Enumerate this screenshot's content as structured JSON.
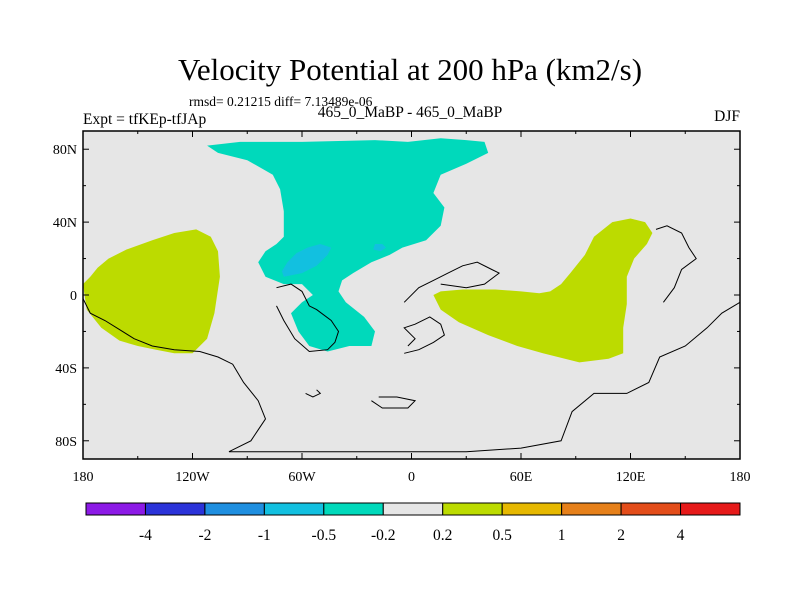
{
  "chart_data": {
    "type": "filled-contour-map",
    "title": "Velocity Potential at 200 hPa (km2/s)",
    "stats_line": "rmsd= 0.21215  diff= 7.13489e-06",
    "left_label": "Expt = tfKEp-tfJAp",
    "center_label": "465_0_MaBP - 465_0_MaBP",
    "right_label": "DJF",
    "xlim": [
      -180,
      180
    ],
    "ylim": [
      -90,
      90
    ],
    "x_ticks": [
      {
        "value": -180,
        "label": "180"
      },
      {
        "value": -120,
        "label": "120W"
      },
      {
        "value": -60,
        "label": "60W"
      },
      {
        "value": 0,
        "label": "0"
      },
      {
        "value": 60,
        "label": "60E"
      },
      {
        "value": 120,
        "label": "120E"
      },
      {
        "value": 180,
        "label": "180"
      }
    ],
    "y_ticks": [
      {
        "value": 80,
        "label": "80N"
      },
      {
        "value": 40,
        "label": "40N"
      },
      {
        "value": 0,
        "label": "0"
      },
      {
        "value": -40,
        "label": "40S"
      },
      {
        "value": -80,
        "label": "80S"
      }
    ],
    "colorbar": {
      "colors": [
        "#8c1ae6",
        "#2b33d9",
        "#1f8fe0",
        "#12c0e0",
        "#00d9bb",
        "#e6e6e6",
        "#bcdb00",
        "#e6b800",
        "#e6801a",
        "#e34d1a",
        "#e61a1a"
      ],
      "labels": [
        "-4",
        "-2",
        "-1",
        "-0.5",
        "-0.2",
        "0.2",
        "0.5",
        "1",
        "2",
        "4"
      ]
    },
    "regions": [
      {
        "name": "positive-north-pacific",
        "level": "0.2 to 0.5",
        "color": "#bcdb00",
        "lonlat": [
          [
            -180,
            6
          ],
          [
            -178,
            -8
          ],
          [
            -170,
            -18
          ],
          [
            -160,
            -25
          ],
          [
            -150,
            -28
          ],
          [
            -140,
            -30
          ],
          [
            -130,
            -32
          ],
          [
            -120,
            -32
          ],
          [
            -112,
            -24
          ],
          [
            -108,
            -10
          ],
          [
            -105,
            10
          ],
          [
            -106,
            24
          ],
          [
            -110,
            32
          ],
          [
            -118,
            36
          ],
          [
            -130,
            34
          ],
          [
            -142,
            30
          ],
          [
            -156,
            25
          ],
          [
            -166,
            20
          ],
          [
            -172,
            15
          ],
          [
            -176,
            10
          ]
        ]
      },
      {
        "name": "positive-indian-ocean",
        "level": "0.2 to 0.5",
        "color": "#bcdb00",
        "lonlat": [
          [
            12,
            0
          ],
          [
            16,
            -8
          ],
          [
            26,
            -15
          ],
          [
            42,
            -22
          ],
          [
            58,
            -28
          ],
          [
            72,
            -32
          ],
          [
            92,
            -37
          ],
          [
            108,
            -35
          ],
          [
            116,
            -32
          ],
          [
            116,
            -18
          ],
          [
            118,
            -5
          ],
          [
            118,
            10
          ],
          [
            122,
            20
          ],
          [
            129,
            28
          ],
          [
            132,
            34
          ],
          [
            128,
            40
          ],
          [
            120,
            42
          ],
          [
            110,
            40
          ],
          [
            100,
            32
          ],
          [
            95,
            22
          ],
          [
            87,
            12
          ],
          [
            82,
            6
          ],
          [
            76,
            2
          ],
          [
            70,
            1
          ],
          [
            60,
            2
          ],
          [
            46,
            3
          ],
          [
            38,
            3
          ],
          [
            28,
            3
          ],
          [
            16,
            2
          ]
        ]
      },
      {
        "name": "negative-atlantic",
        "level": "-0.5 to -0.2",
        "color": "#00d9bb",
        "lonlat": [
          [
            -112,
            82
          ],
          [
            -94,
            84
          ],
          [
            -60,
            84
          ],
          [
            -20,
            85
          ],
          [
            -2,
            84
          ],
          [
            16,
            86
          ],
          [
            30,
            85
          ],
          [
            40,
            84
          ],
          [
            42,
            78
          ],
          [
            30,
            72
          ],
          [
            16,
            66
          ],
          [
            12,
            56
          ],
          [
            18,
            48
          ],
          [
            16,
            38
          ],
          [
            8,
            30
          ],
          [
            -5,
            26
          ],
          [
            -12,
            22
          ],
          [
            -22,
            18
          ],
          [
            -32,
            12
          ],
          [
            -38,
            8
          ],
          [
            -40,
            2
          ],
          [
            -36,
            -4
          ],
          [
            -26,
            -12
          ],
          [
            -20,
            -20
          ],
          [
            -22,
            -28
          ],
          [
            -34,
            -28
          ],
          [
            -46,
            -31
          ],
          [
            -56,
            -28
          ],
          [
            -62,
            -20
          ],
          [
            -66,
            -10
          ],
          [
            -60,
            -4
          ],
          [
            -54,
            0
          ],
          [
            -60,
            6
          ],
          [
            -70,
            6
          ],
          [
            -80,
            10
          ],
          [
            -84,
            18
          ],
          [
            -80,
            24
          ],
          [
            -74,
            28
          ],
          [
            -70,
            32
          ],
          [
            -70,
            46
          ],
          [
            -72,
            58
          ],
          [
            -76,
            66
          ],
          [
            -90,
            74
          ],
          [
            -106,
            78
          ]
        ]
      },
      {
        "name": "negative-center",
        "level": "-1 to -0.5",
        "color": "#12c0e0",
        "lonlat": [
          [
            -70,
            10
          ],
          [
            -60,
            12
          ],
          [
            -52,
            16
          ],
          [
            -46,
            22
          ],
          [
            -44,
            26
          ],
          [
            -50,
            28
          ],
          [
            -57,
            26
          ],
          [
            -63,
            23
          ],
          [
            -68,
            18
          ],
          [
            -71,
            13
          ]
        ]
      },
      {
        "name": "negative-spot",
        "level": "-1 to -0.5",
        "color": "#12c0e0",
        "lonlat": [
          [
            -20,
            28
          ],
          [
            -16,
            28
          ],
          [
            -14,
            26
          ],
          [
            -17,
            24
          ],
          [
            -21,
            25
          ]
        ]
      }
    ],
    "land_outlines": [
      {
        "name": "coast-west",
        "lonlat": [
          [
            -180,
            -2
          ],
          [
            -176,
            -10
          ],
          [
            -168,
            -14
          ],
          [
            -160,
            -19
          ],
          [
            -152,
            -24
          ],
          [
            -142,
            -28
          ],
          [
            -130,
            -30
          ],
          [
            -116,
            -31
          ],
          [
            -106,
            -34
          ],
          [
            -98,
            -38
          ],
          [
            -92,
            -48
          ],
          [
            -84,
            -58
          ],
          [
            -80,
            -68
          ],
          [
            -84,
            -74
          ],
          [
            -88,
            -80
          ],
          [
            -96,
            -84
          ],
          [
            -100,
            -86
          ],
          [
            -80,
            -86
          ],
          [
            -20,
            -86
          ],
          [
            30,
            -86
          ],
          [
            60,
            -84
          ],
          [
            82,
            -80
          ],
          [
            88,
            -64
          ],
          [
            100,
            -54
          ],
          [
            118,
            -54
          ],
          [
            130,
            -48
          ],
          [
            136,
            -34
          ],
          [
            150,
            -28
          ],
          [
            162,
            -18
          ],
          [
            170,
            -10
          ],
          [
            180,
            -4
          ]
        ]
      },
      {
        "name": "south-america",
        "lonlat": [
          [
            -74,
            4
          ],
          [
            -66,
            6
          ],
          [
            -60,
            2
          ],
          [
            -56,
            -6
          ],
          [
            -52,
            -8
          ],
          [
            -44,
            -14
          ],
          [
            -40,
            -20
          ],
          [
            -42,
            -26
          ],
          [
            -46,
            -30
          ],
          [
            -56,
            -31
          ],
          [
            -64,
            -24
          ],
          [
            -70,
            -14
          ],
          [
            -74,
            -6
          ]
        ]
      },
      {
        "name": "africa",
        "lonlat": [
          [
            -4,
            -32
          ],
          [
            4,
            -30
          ],
          [
            12,
            -26
          ],
          [
            18,
            -22
          ],
          [
            16,
            -16
          ],
          [
            10,
            -12
          ],
          [
            2,
            -16
          ],
          [
            -4,
            -18
          ],
          [
            2,
            -24
          ],
          [
            -2,
            -28
          ]
        ]
      },
      {
        "name": "eurasia-coast",
        "lonlat": [
          [
            -4,
            -4
          ],
          [
            4,
            4
          ],
          [
            12,
            8
          ],
          [
            20,
            12
          ],
          [
            28,
            16
          ],
          [
            36,
            18
          ],
          [
            44,
            14
          ],
          [
            48,
            12
          ],
          [
            40,
            6
          ],
          [
            30,
            4
          ],
          [
            16,
            6
          ]
        ]
      },
      {
        "name": "south-island-1",
        "lonlat": [
          [
            -22,
            -58
          ],
          [
            -16,
            -62
          ],
          [
            -2,
            -62
          ],
          [
            2,
            -58
          ],
          [
            -8,
            -56
          ],
          [
            -18,
            -56
          ]
        ]
      },
      {
        "name": "south-island-2",
        "lonlat": [
          [
            -58,
            -54
          ],
          [
            -54,
            -56
          ],
          [
            -50,
            -54
          ],
          [
            -52,
            -52
          ]
        ]
      },
      {
        "name": "far-east",
        "lonlat": [
          [
            134,
            36
          ],
          [
            140,
            38
          ],
          [
            148,
            34
          ],
          [
            152,
            26
          ],
          [
            156,
            20
          ],
          [
            148,
            14
          ],
          [
            144,
            4
          ],
          [
            138,
            -4
          ]
        ]
      }
    ]
  }
}
